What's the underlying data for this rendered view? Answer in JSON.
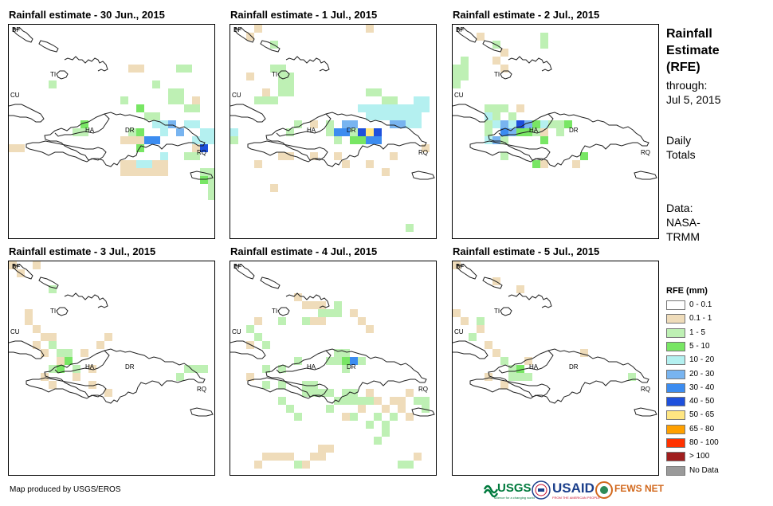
{
  "panels": [
    {
      "title": "Rainfall estimate - 30 Jun., 2015"
    },
    {
      "title": "Rainfall estimate - 1 Jul., 2015"
    },
    {
      "title": "Rainfall estimate - 2 Jul., 2015"
    },
    {
      "title": "Rainfall estimate - 3 Jul., 2015"
    },
    {
      "title": "Rainfall estimate - 4 Jul., 2015"
    },
    {
      "title": "Rainfall estimate - 5 Jul., 2015"
    }
  ],
  "map_labels": {
    "bf": "BF",
    "ti": "TI",
    "cu": "CU",
    "ha": "HA",
    "dr": "DR",
    "rq": "RQ"
  },
  "side": {
    "head1": "Rainfall",
    "head2": "Estimate",
    "head3": "(RFE)",
    "through": "through:",
    "date": "Jul 5, 2015",
    "daily": "Daily",
    "totals": "Totals",
    "data": "Data:",
    "source1": "NASA-",
    "source2": "TRMM"
  },
  "legend": {
    "title": "RFE (mm)",
    "items": [
      {
        "label": "0 - 0.1",
        "color": "#ffffff"
      },
      {
        "label": "0.1 - 1",
        "color": "#efdcba"
      },
      {
        "label": "1 - 5",
        "color": "#bef0b4"
      },
      {
        "label": "5 - 10",
        "color": "#78e664"
      },
      {
        "label": "10 - 20",
        "color": "#b4f0f0"
      },
      {
        "label": "20 - 30",
        "color": "#78b4f0"
      },
      {
        "label": "30 - 40",
        "color": "#3c8cf0"
      },
      {
        "label": "40 - 50",
        "color": "#1e50dc"
      },
      {
        "label": "50 - 65",
        "color": "#ffe682"
      },
      {
        "label": "65 - 80",
        "color": "#ffa000"
      },
      {
        "label": "80 - 100",
        "color": "#ff3200"
      },
      {
        "label": "> 100",
        "color": "#a01e1e"
      },
      {
        "label": "No Data",
        "color": "#9a9a9a"
      }
    ]
  },
  "footer": "Map produced by USGS/EROS",
  "logos": {
    "usgs": "USGS",
    "usgs_tag": "science for a changing world",
    "usaid": "USAID",
    "usaid_tag": "FROM THE AMERICAN PEOPLE",
    "fews": "FEWS NET"
  }
}
